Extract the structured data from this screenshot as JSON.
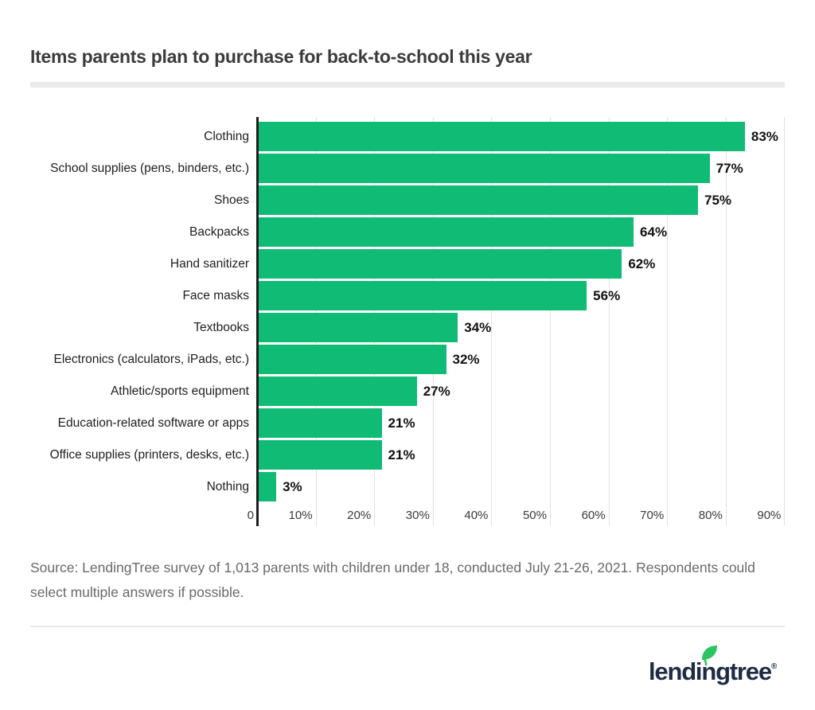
{
  "title": "Items parents plan to purchase for back-to-school this year",
  "source": {
    "text": "Source: LendingTree survey of 1,013 parents with children under 18, conducted July 21-26, 2021. Respondents could select multiple answers if possible."
  },
  "logo": {
    "text": "lendingtree",
    "registered": "®",
    "navy": "#1E2B45",
    "leaf_green": "#2BC462"
  },
  "chart_data": {
    "type": "bar",
    "orientation": "horizontal",
    "title": "Items parents plan to purchase for back-to-school this year",
    "categories": [
      "Clothing",
      "School supplies (pens, binders, etc.)",
      "Shoes",
      "Backpacks",
      "Hand sanitizer",
      "Face masks",
      "Textbooks",
      "Electronics (calculators, iPads, etc.)",
      "Athletic/sports equipment",
      "Education-related software or apps",
      "Office supplies (printers, desks, etc.)",
      "Nothing"
    ],
    "values": [
      83,
      77,
      75,
      64,
      62,
      56,
      34,
      32,
      27,
      21,
      21,
      3
    ],
    "value_labels": [
      "83%",
      "77%",
      "75%",
      "64%",
      "62%",
      "56%",
      "34%",
      "32%",
      "27%",
      "21%",
      "21%",
      "3%"
    ],
    "x_ticks": [
      {
        "value": 0,
        "label": "0"
      },
      {
        "value": 10,
        "label": "10%"
      },
      {
        "value": 20,
        "label": "20%"
      },
      {
        "value": 30,
        "label": "30%"
      },
      {
        "value": 40,
        "label": "40%"
      },
      {
        "value": 50,
        "label": "50%"
      },
      {
        "value": 60,
        "label": "60%"
      },
      {
        "value": 70,
        "label": "70%"
      },
      {
        "value": 80,
        "label": "80%"
      },
      {
        "value": 90,
        "label": "90%"
      }
    ],
    "xlim": [
      0,
      92
    ],
    "grid": true,
    "bar_color": "#10BC75",
    "axis_color": "#1D1D1D",
    "gridline_color": "#E2E2E2"
  }
}
